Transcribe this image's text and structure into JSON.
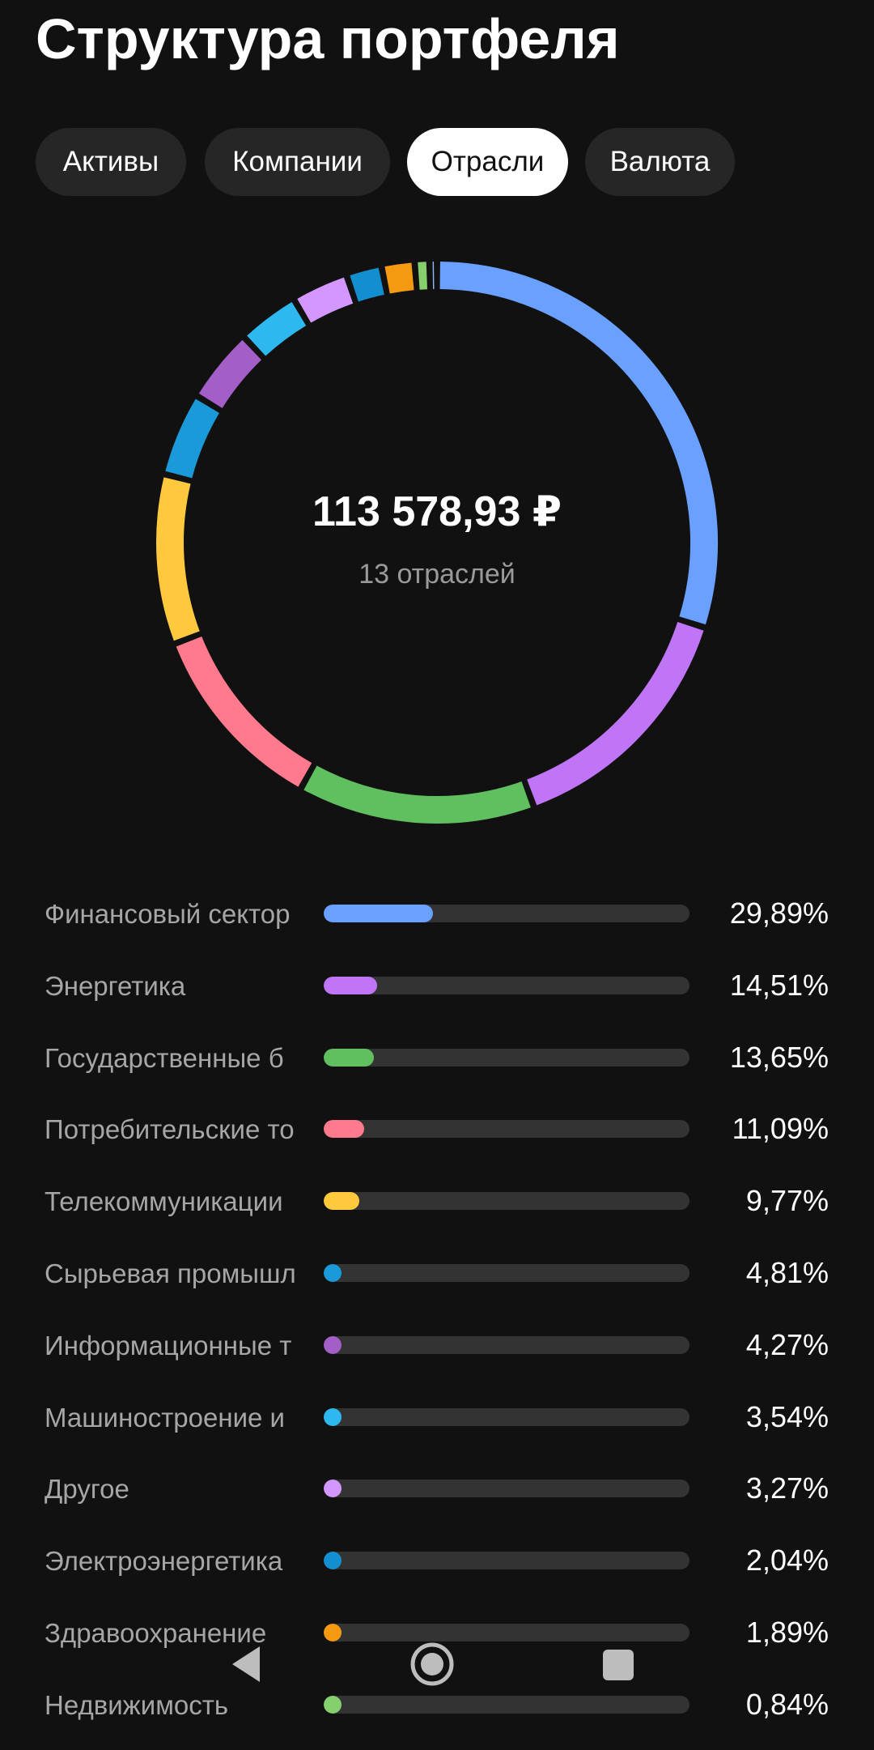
{
  "page_title": "Структура портфеля",
  "tabs": [
    {
      "label": "Активы",
      "active": false
    },
    {
      "label": "Компании",
      "active": false
    },
    {
      "label": "Отрасли",
      "active": true
    },
    {
      "label": "Валюта",
      "active": false
    }
  ],
  "summary": {
    "total": "113 578,93 ₽",
    "subtitle": "13 отраслей"
  },
  "chart_data": {
    "type": "pie",
    "style": "donut",
    "categories": [
      "Финансовый сектор",
      "Энергетика",
      "Государственные б",
      "Потребительские то",
      "Телекоммуникации",
      "Сырьевая промышл",
      "Информационные т",
      "Машиностроение и",
      "Другое",
      "Электроэнергетика",
      "Здравоохранение",
      "Недвижимость",
      ""
    ],
    "values": [
      29.89,
      14.51,
      13.65,
      11.09,
      9.77,
      4.81,
      4.27,
      3.54,
      3.27,
      2.04,
      1.89,
      0.84,
      0.43
    ],
    "value_labels": [
      "29,89%",
      "14,51%",
      "13,65%",
      "11,09%",
      "9,77%",
      "4,81%",
      "4,27%",
      "3,54%",
      "3,27%",
      "2,04%",
      "1,89%",
      "0,84%",
      ""
    ],
    "colors": [
      "#6aa0ff",
      "#bf75f5",
      "#60c060",
      "#ff7a8c",
      "#ffc93d",
      "#1a9ad8",
      "#a45ec8",
      "#2eb8f0",
      "#d497ff",
      "#138fd0",
      "#f59a10",
      "#86cf6f",
      "#8fb6ff"
    ]
  },
  "icons": {
    "back": "triangle-left-icon",
    "home": "circle-home-icon",
    "recents": "square-recents-icon"
  }
}
